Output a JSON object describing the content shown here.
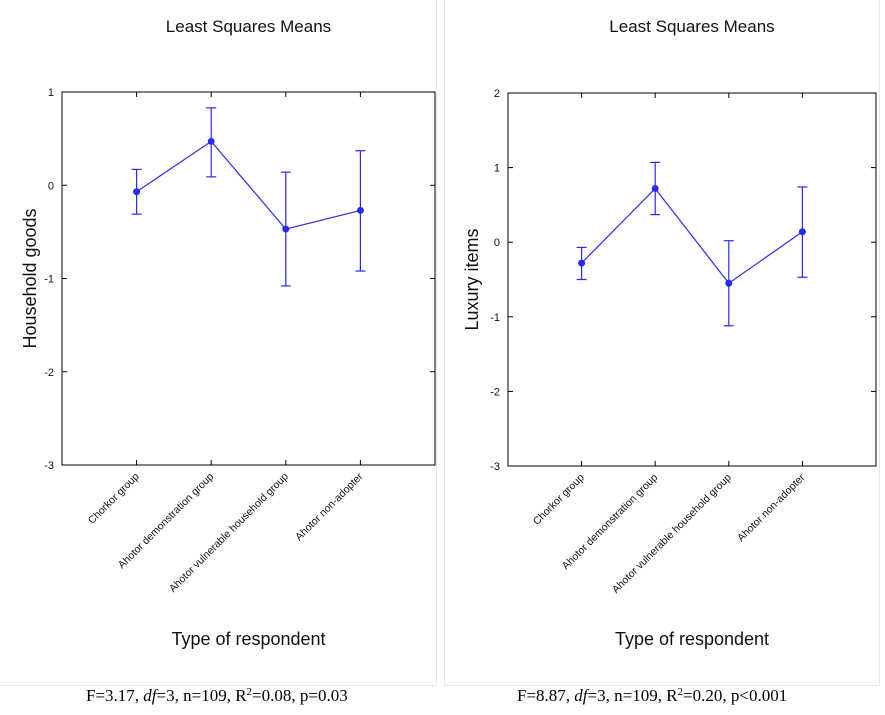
{
  "chart_data": [
    {
      "type": "line",
      "title": "Least Squares Means",
      "xlabel": "Type of respondent",
      "ylabel": "Household goods",
      "categories": [
        "Chorkor group",
        "Ahotor demonstration group",
        "Ahotor vulnerable household group",
        "Ahotor non-adopter"
      ],
      "series": [
        {
          "values": [
            -0.07,
            0.47,
            -0.47,
            -0.27
          ],
          "lower": [
            -0.31,
            0.09,
            -1.08,
            -0.92
          ],
          "upper": [
            0.17,
            0.83,
            0.14,
            0.37
          ]
        }
      ],
      "ylim": [
        -3,
        1
      ],
      "yticks": [
        -3,
        -2,
        -1,
        0,
        1
      ],
      "grid": false,
      "caption": {
        "F": "F=3.17, ",
        "df_label": "df",
        "df_value": "=3, n=109, R",
        "r2_sup": "2",
        "r2_rest": "=0.08, p=0.03"
      }
    },
    {
      "type": "line",
      "title": "Least Squares Means",
      "xlabel": "Type of respondent",
      "ylabel": "Luxury items",
      "categories": [
        "Chorkor group",
        "Ahotor demonstration group",
        "Ahotor vulnerable household group",
        "Ahotor non-adopter"
      ],
      "series": [
        {
          "values": [
            -0.28,
            0.72,
            -0.55,
            0.14
          ],
          "lower": [
            -0.5,
            0.37,
            -1.12,
            -0.47
          ],
          "upper": [
            -0.07,
            1.07,
            0.02,
            0.74
          ]
        }
      ],
      "ylim": [
        -3,
        2
      ],
      "yticks": [
        -3,
        -2,
        -1,
        0,
        1,
        2
      ],
      "grid": false,
      "caption": {
        "F": "F=8.87, ",
        "df_label": "df",
        "df_value": "=3, n=109, R",
        "r2_sup": "2",
        "r2_rest": "=0.20, p<0.001"
      }
    }
  ],
  "colors": {
    "series": "#2a2aee",
    "axis": "#000000"
  }
}
